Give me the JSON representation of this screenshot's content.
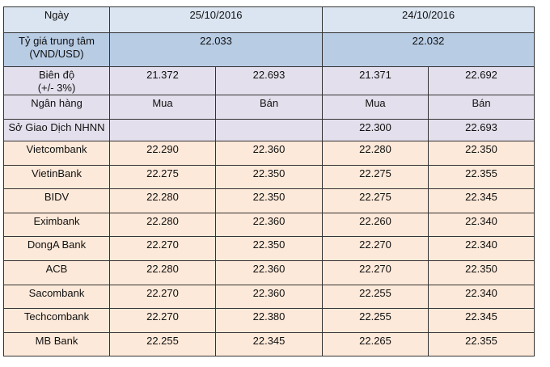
{
  "header": {
    "date_label": "Ngày",
    "dates": [
      "25/10/2016",
      "24/10/2016"
    ]
  },
  "central_rate": {
    "label_lines": [
      "Tỷ giá trung tâm",
      "(VND/USD)"
    ],
    "values": [
      "22.033",
      "22.032"
    ]
  },
  "band": {
    "label_lines": [
      "Biên độ",
      "(+/- 3%)"
    ],
    "values": [
      "21.372",
      "22.693",
      "21.371",
      "22.692"
    ]
  },
  "columns": {
    "label": "Ngân hàng",
    "headers": [
      "Mua",
      "Bán",
      "Mua",
      "Bán"
    ]
  },
  "rows": [
    {
      "name": "Sở Giao Dịch NHNN",
      "values": [
        null,
        null,
        "22.300",
        "22.693"
      ]
    },
    {
      "name": "Vietcombank",
      "values": [
        "22.290",
        "22.360",
        "22.280",
        "22.350"
      ]
    },
    {
      "name": "VietinBank",
      "values": [
        "22.275",
        "22.350",
        "22.275",
        "22.355"
      ]
    },
    {
      "name": "BIDV",
      "values": [
        "22.280",
        "22.350",
        "22.275",
        "22.345"
      ]
    },
    {
      "name": "Eximbank",
      "values": [
        "22.280",
        "22.360",
        "22.260",
        "22.340"
      ]
    },
    {
      "name": "DongA Bank",
      "values": [
        "22.270",
        "22.350",
        "22.270",
        "22.340"
      ]
    },
    {
      "name": "ACB",
      "values": [
        "22.280",
        "22.360",
        "22.270",
        "22.350"
      ]
    },
    {
      "name": "Sacombank",
      "values": [
        "22.270",
        "22.360",
        "22.255",
        "22.340"
      ]
    },
    {
      "name": "Techcombank",
      "values": [
        "22.270",
        "22.380",
        "22.255",
        "22.345"
      ]
    },
    {
      "name": "MB Bank",
      "values": [
        "22.255",
        "22.345",
        "22.265",
        "22.355"
      ]
    }
  ]
}
